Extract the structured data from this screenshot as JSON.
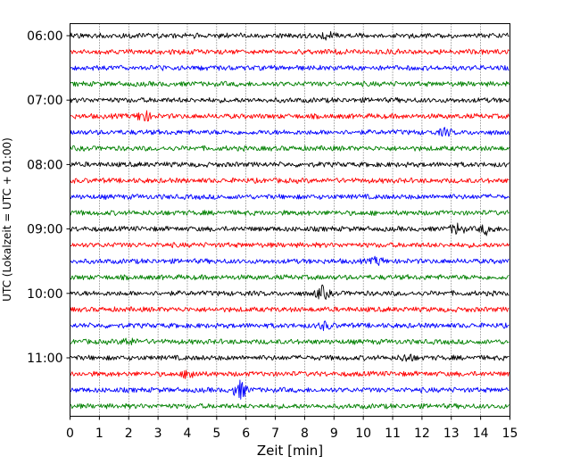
{
  "chart_data": {
    "type": "line",
    "title": "",
    "xlabel": "Zeit  [min]",
    "ylabel": "UTC (Lokalzeit = UTC + 01:00)",
    "xlim": [
      0,
      15
    ],
    "x_ticks": [
      "0",
      "1",
      "2",
      "3",
      "4",
      "5",
      "6",
      "7",
      "8",
      "9",
      "10",
      "11",
      "12",
      "13",
      "14",
      "15"
    ],
    "y_tick_labels": [
      "06:00",
      "07:00",
      "08:00",
      "09:00",
      "10:00",
      "11:00"
    ],
    "grid": "vertical dotted lines at each minute",
    "trace_interval_minutes": 15,
    "first_trace_time": "06:00",
    "trace_count": 24,
    "trace_colors": [
      "#000000",
      "#ff0000",
      "#0000ff",
      "#008000"
    ],
    "events": [
      {
        "trace": 0,
        "minute": 8.8,
        "amplitude": 1.6
      },
      {
        "trace": 5,
        "minute": 2.5,
        "amplitude": 2.8
      },
      {
        "trace": 6,
        "minute": 12.8,
        "amplitude": 1.5
      },
      {
        "trace": 12,
        "minute": 13.2,
        "amplitude": 2.4
      },
      {
        "trace": 12,
        "minute": 14.2,
        "amplitude": 2.2
      },
      {
        "trace": 14,
        "minute": 10.5,
        "amplitude": 1.6
      },
      {
        "trace": 16,
        "minute": 8.6,
        "amplitude": 3.0
      },
      {
        "trace": 18,
        "minute": 8.7,
        "amplitude": 1.6
      },
      {
        "trace": 19,
        "minute": 2.0,
        "amplitude": 1.6
      },
      {
        "trace": 20,
        "minute": 11.5,
        "amplitude": 1.7
      },
      {
        "trace": 21,
        "minute": 4.1,
        "amplitude": 2.4
      },
      {
        "trace": 22,
        "minute": 5.8,
        "amplitude": 4.2
      }
    ]
  }
}
